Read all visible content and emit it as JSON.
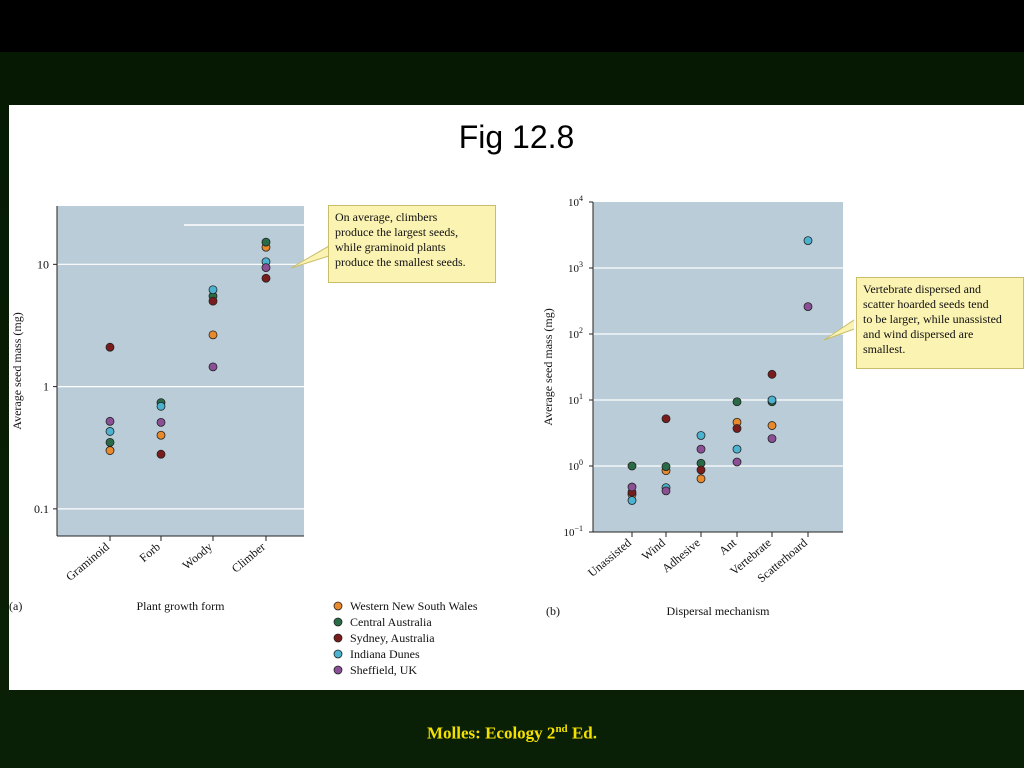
{
  "slide": {
    "title": "Fig 12.8",
    "footer_main": "Molles: Ecology 2",
    "footer_sup": "nd",
    "footer_end": " Ed.",
    "colors": {
      "background_top": "#000000",
      "background": "#0a2006",
      "footer_text": "#f4e100",
      "plot_bg": "#b9ccd8"
    }
  },
  "legend": {
    "items": [
      {
        "label": "Western New South Wales",
        "color": "#e8892c"
      },
      {
        "label": "Central Australia",
        "color": "#2a6b47"
      },
      {
        "label": "Sydney, Australia",
        "color": "#7a1c1c"
      },
      {
        "label": "Indiana Dunes",
        "color": "#4bb3cf"
      },
      {
        "label": "Sheffield, UK",
        "color": "#8a4f94"
      }
    ]
  },
  "chart_data": [
    {
      "type": "scatter",
      "panel_label": "(a)",
      "title": "",
      "xlabel": "Plant growth form",
      "ylabel": "Average seed mass (mg)",
      "y_scale": "log",
      "ylim": [
        0.06,
        30
      ],
      "y_ticks": [
        0.1,
        1,
        10
      ],
      "y_tick_labels": [
        "0.1",
        "1",
        "10"
      ],
      "grid": true,
      "categories": [
        "Graminoid",
        "Forb",
        "Woody",
        "Climber"
      ],
      "series": [
        {
          "name": "Western New South Wales",
          "values": [
            0.3,
            0.4,
            2.65,
            13.8
          ]
        },
        {
          "name": "Central Australia",
          "values": [
            0.35,
            0.74,
            5.5,
            15.2
          ]
        },
        {
          "name": "Sydney, Australia",
          "values": [
            2.1,
            0.28,
            5.0,
            7.7
          ]
        },
        {
          "name": "Indiana Dunes",
          "values": [
            0.43,
            0.69,
            6.2,
            10.5
          ]
        },
        {
          "name": "Sheffield, UK",
          "values": [
            0.52,
            0.51,
            1.45,
            9.4
          ]
        }
      ],
      "annotation": "On average, climbers produce the largest seeds, while graminoid plants produce the smallest seeds.",
      "annotation_lines": [
        "On average, climbers",
        "produce the largest seeds,",
        "while graminoid plants",
        "produce the smallest seeds."
      ]
    },
    {
      "type": "scatter",
      "panel_label": "(b)",
      "title": "",
      "xlabel": "Dispersal mechanism",
      "ylabel": "Average seed mass (mg)",
      "y_scale": "log",
      "ylim": [
        0.1,
        10000
      ],
      "y_ticks": [
        0.1,
        1,
        10,
        100,
        1000,
        10000
      ],
      "y_tick_labels": [
        [
          "10",
          "−1"
        ],
        [
          "10",
          "0"
        ],
        [
          "10",
          "1"
        ],
        [
          "10",
          "2"
        ],
        [
          "10",
          "3"
        ],
        [
          "10",
          "4"
        ]
      ],
      "grid": true,
      "categories": [
        "Unassisted",
        "Wind",
        "Adhesive",
        "Ant",
        "Vertebrate",
        "Scatterhoard"
      ],
      "series": [
        {
          "name": "Western New South Wales",
          "values": [
            0.37,
            0.85,
            0.64,
            4.6,
            4.1,
            null
          ]
        },
        {
          "name": "Central Australia",
          "values": [
            1.0,
            0.98,
            1.1,
            9.4,
            9.4,
            null
          ]
        },
        {
          "name": "Sydney, Australia",
          "values": [
            0.4,
            5.2,
            0.87,
            3.7,
            24.5,
            null
          ]
        },
        {
          "name": "Indiana Dunes",
          "values": [
            0.3,
            0.47,
            2.9,
            1.8,
            10.0,
            2600
          ]
        },
        {
          "name": "Sheffield, UK",
          "values": [
            0.48,
            0.42,
            1.8,
            1.15,
            2.6,
            260
          ]
        }
      ],
      "annotation": "Vertebrate dispersed and scatter hoarded seeds tend to be larger, while unassisted and wind dispersed are smallest.",
      "annotation_lines": [
        "Vertebrate dispersed and",
        "scatter hoarded seeds tend",
        "to be larger, while unassisted",
        "and wind dispersed are",
        "smallest."
      ]
    }
  ]
}
